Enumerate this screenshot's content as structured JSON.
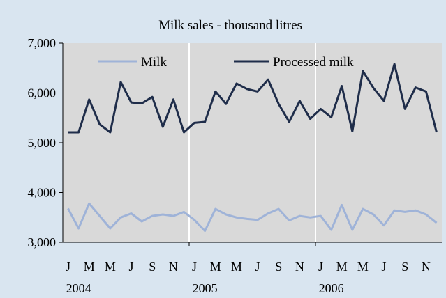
{
  "chart_data": {
    "type": "line",
    "title": "Milk sales - thousand litres",
    "ylim": [
      3000,
      7000
    ],
    "yticks": [
      3000,
      4000,
      5000,
      6000,
      7000
    ],
    "ytick_labels": [
      "3,000",
      "4,000",
      "5,000",
      "6,000",
      "7,000"
    ],
    "month_labels": [
      "J",
      "M",
      "M",
      "J",
      "S",
      "N",
      "J",
      "M",
      "M",
      "J",
      "S",
      "N",
      "J",
      "M",
      "M",
      "J",
      "S",
      "N"
    ],
    "year_labels": [
      "2004",
      "2005",
      "2006"
    ],
    "months_per_year": 12,
    "grid": "vertical dividers between years",
    "legend_position": "top",
    "series": [
      {
        "name": "Milk",
        "color": "#9fb3d8",
        "values": [
          3680,
          3280,
          3780,
          3530,
          3280,
          3500,
          3580,
          3420,
          3530,
          3560,
          3530,
          3610,
          3450,
          3230,
          3670,
          3560,
          3500,
          3470,
          3450,
          3580,
          3670,
          3440,
          3530,
          3500,
          3530,
          3250,
          3750,
          3250,
          3670,
          3560,
          3340,
          3640,
          3610,
          3640,
          3560,
          3390
        ]
      },
      {
        "name": "Processed milk",
        "color": "#1f2d4a",
        "values": [
          5210,
          5210,
          5870,
          5370,
          5210,
          6220,
          5810,
          5790,
          5920,
          5320,
          5870,
          5210,
          5400,
          5420,
          6030,
          5780,
          6190,
          6080,
          6030,
          6270,
          5780,
          5420,
          5840,
          5480,
          5680,
          5510,
          6140,
          5230,
          6440,
          6100,
          5840,
          6580,
          5680,
          6110,
          6030,
          5210
        ]
      }
    ]
  }
}
